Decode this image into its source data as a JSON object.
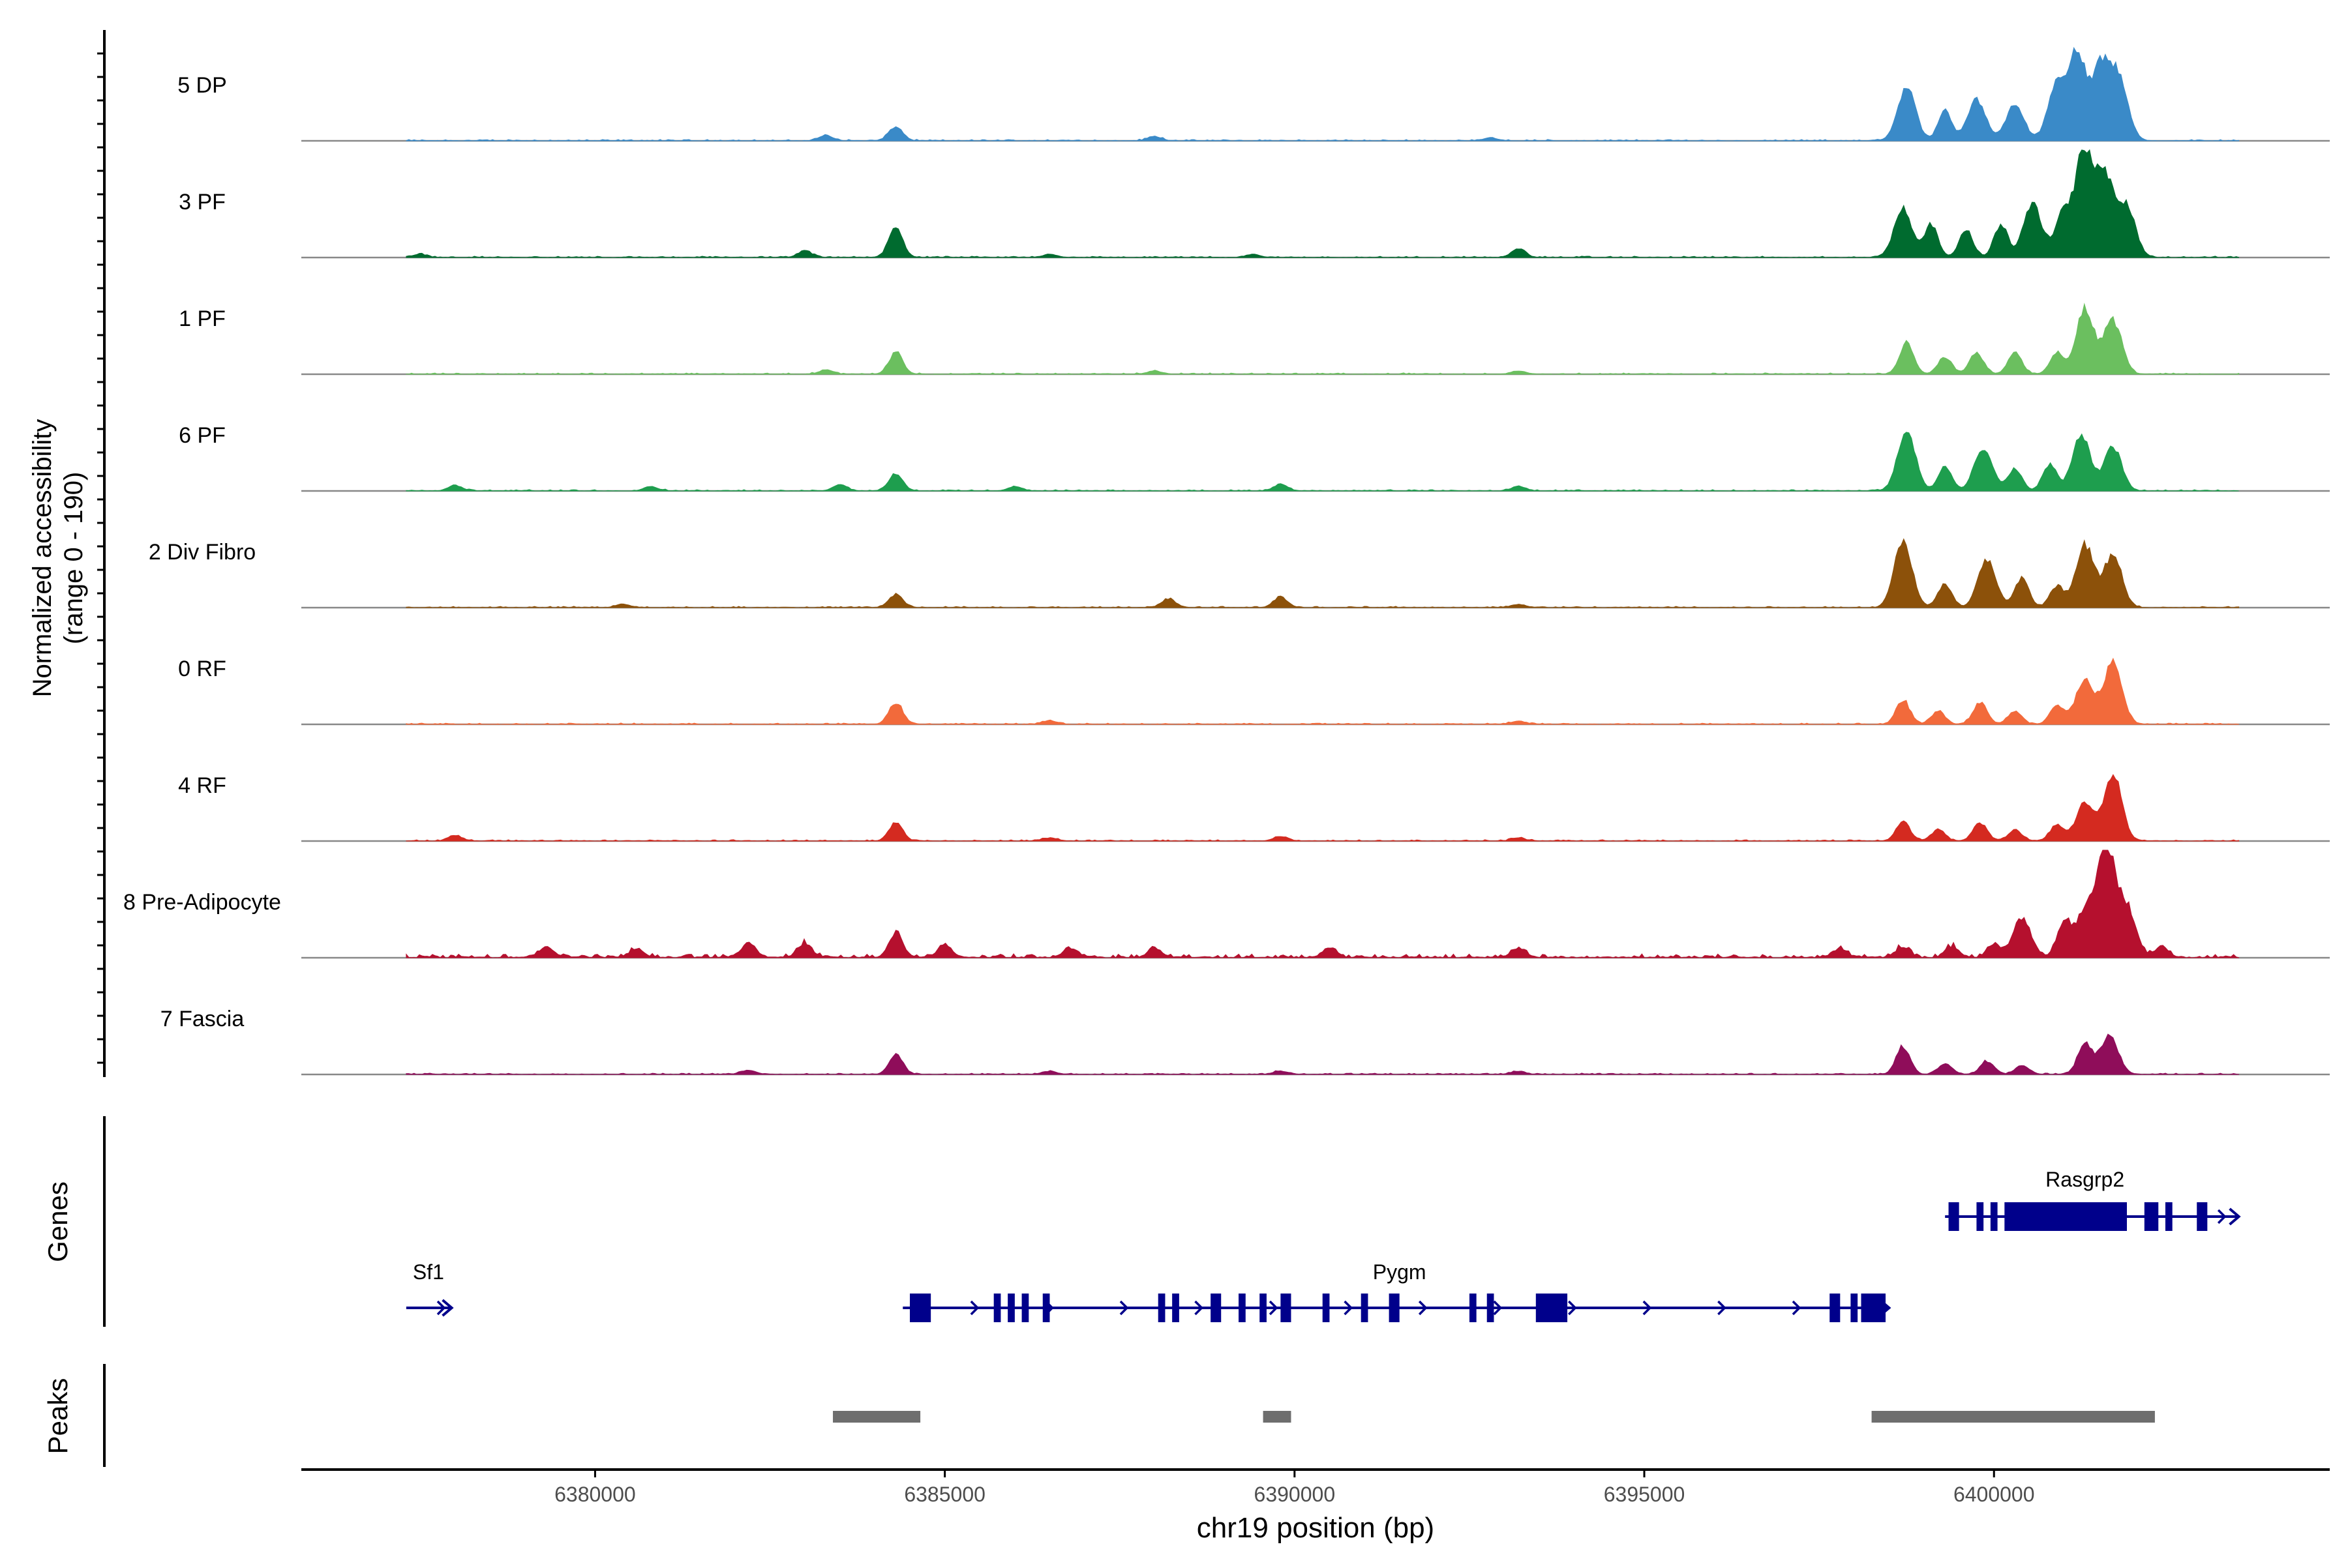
{
  "chart_data": {
    "type": "area",
    "title": "",
    "xlabel": "chr19 position (bp)",
    "ylabel": "Normalized accessibility",
    "ylabel_range": "(range 0 - 190)",
    "yrange": [
      0,
      190
    ],
    "xlim": [
      6375800,
      6404800
    ],
    "x_ticks": [
      6380000,
      6385000,
      6390000,
      6395000,
      6400000
    ],
    "x_tick_labels": [
      "6380000",
      "6385000",
      "6390000",
      "6395000",
      "6400000"
    ],
    "data_range": [
      6377300,
      6403500
    ],
    "tracks": [
      {
        "name": "5 DP",
        "color": "#3a8ac8",
        "peaks": [
          [
            6383300,
            0.05
          ],
          [
            6384300,
            0.13
          ],
          [
            6388000,
            0.04
          ],
          [
            6392800,
            0.03
          ],
          [
            6398750,
            0.5
          ],
          [
            6399300,
            0.28
          ],
          [
            6399750,
            0.38
          ],
          [
            6400300,
            0.33
          ],
          [
            6400900,
            0.54
          ],
          [
            6401200,
            0.79
          ],
          [
            6401550,
            0.7
          ],
          [
            6401800,
            0.5
          ]
        ]
      },
      {
        "name": "3 PF",
        "color": "#006b2f",
        "peaks": [
          [
            6377500,
            0.03
          ],
          [
            6383000,
            0.06
          ],
          [
            6384300,
            0.28
          ],
          [
            6386500,
            0.03
          ],
          [
            6389400,
            0.03
          ],
          [
            6393200,
            0.08
          ],
          [
            6398700,
            0.46
          ],
          [
            6399100,
            0.3
          ],
          [
            6399600,
            0.25
          ],
          [
            6400100,
            0.3
          ],
          [
            6400550,
            0.5
          ],
          [
            6401000,
            0.4
          ],
          [
            6401300,
            0.98
          ],
          [
            6401600,
            0.7
          ],
          [
            6401900,
            0.45
          ]
        ]
      },
      {
        "name": "1 PF",
        "color": "#6bbf5f",
        "peaks": [
          [
            6383300,
            0.04
          ],
          [
            6384300,
            0.2
          ],
          [
            6388000,
            0.03
          ],
          [
            6393200,
            0.03
          ],
          [
            6398750,
            0.3
          ],
          [
            6399300,
            0.16
          ],
          [
            6399750,
            0.2
          ],
          [
            6400300,
            0.2
          ],
          [
            6400900,
            0.2
          ],
          [
            6401300,
            0.6
          ],
          [
            6401700,
            0.5
          ]
        ]
      },
      {
        "name": "6 PF",
        "color": "#1e9e4e",
        "peaks": [
          [
            6378000,
            0.05
          ],
          [
            6380800,
            0.04
          ],
          [
            6383500,
            0.06
          ],
          [
            6384300,
            0.16
          ],
          [
            6386000,
            0.04
          ],
          [
            6389800,
            0.06
          ],
          [
            6393200,
            0.04
          ],
          [
            6398750,
            0.55
          ],
          [
            6399300,
            0.22
          ],
          [
            6399850,
            0.4
          ],
          [
            6400300,
            0.2
          ],
          [
            6400800,
            0.25
          ],
          [
            6401250,
            0.52
          ],
          [
            6401700,
            0.4
          ]
        ]
      },
      {
        "name": "2 Div Fibro",
        "color": "#8c510a",
        "peaks": [
          [
            6380400,
            0.03
          ],
          [
            6384300,
            0.12
          ],
          [
            6388200,
            0.08
          ],
          [
            6389800,
            0.1
          ],
          [
            6393200,
            0.03
          ],
          [
            6398700,
            0.62
          ],
          [
            6399300,
            0.22
          ],
          [
            6399900,
            0.45
          ],
          [
            6400400,
            0.28
          ],
          [
            6400900,
            0.2
          ],
          [
            6401300,
            0.58
          ],
          [
            6401700,
            0.48
          ]
        ]
      },
      {
        "name": "0 RF",
        "color": "#f26a3b",
        "peaks": [
          [
            6384300,
            0.2
          ],
          [
            6386500,
            0.03
          ],
          [
            6393200,
            0.03
          ],
          [
            6398700,
            0.22
          ],
          [
            6399200,
            0.12
          ],
          [
            6399800,
            0.2
          ],
          [
            6400300,
            0.12
          ],
          [
            6400900,
            0.18
          ],
          [
            6401300,
            0.42
          ],
          [
            6401700,
            0.58
          ]
        ]
      },
      {
        "name": "4 RF",
        "color": "#d42a20",
        "peaks": [
          [
            6378000,
            0.05
          ],
          [
            6384300,
            0.17
          ],
          [
            6386500,
            0.03
          ],
          [
            6389800,
            0.04
          ],
          [
            6393200,
            0.03
          ],
          [
            6398700,
            0.18
          ],
          [
            6399200,
            0.1
          ],
          [
            6399800,
            0.17
          ],
          [
            6400300,
            0.1
          ],
          [
            6400900,
            0.15
          ],
          [
            6401300,
            0.35
          ],
          [
            6401700,
            0.62
          ]
        ]
      },
      {
        "name": "8 Pre-Adipocyte",
        "color": "#b5102e",
        "peaks": [
          [
            6379300,
            0.1
          ],
          [
            6380600,
            0.08
          ],
          [
            6382200,
            0.14
          ],
          [
            6383000,
            0.13
          ],
          [
            6384300,
            0.22
          ],
          [
            6385000,
            0.12
          ],
          [
            6386800,
            0.08
          ],
          [
            6388000,
            0.08
          ],
          [
            6390500,
            0.09
          ],
          [
            6393200,
            0.09
          ],
          [
            6397800,
            0.08
          ],
          [
            6398700,
            0.1
          ],
          [
            6399400,
            0.1
          ],
          [
            6400000,
            0.12
          ],
          [
            6400400,
            0.36
          ],
          [
            6401000,
            0.3
          ],
          [
            6401300,
            0.42
          ],
          [
            6401600,
            1.0
          ],
          [
            6401900,
            0.45
          ],
          [
            6402400,
            0.1
          ]
        ]
      },
      {
        "name": "7 Fascia",
        "color": "#8f0d5a",
        "peaks": [
          [
            6382200,
            0.04
          ],
          [
            6384300,
            0.18
          ],
          [
            6386500,
            0.03
          ],
          [
            6389800,
            0.03
          ],
          [
            6393200,
            0.03
          ],
          [
            6398700,
            0.26
          ],
          [
            6399300,
            0.1
          ],
          [
            6399900,
            0.12
          ],
          [
            6400400,
            0.08
          ],
          [
            6401300,
            0.3
          ],
          [
            6401650,
            0.36
          ]
        ]
      }
    ],
    "genes_label": "Genes",
    "genes": [
      {
        "name": "Sf1",
        "strand": "+",
        "start": 6377300,
        "end": 6377950,
        "exons": []
      },
      {
        "name": "Pygm",
        "strand": "+",
        "start": 6384400,
        "end": 6398500,
        "exons": [
          [
            6384500,
            6384800
          ],
          [
            6385700,
            6385800
          ],
          [
            6385900,
            6386000
          ],
          [
            6386100,
            6386200
          ],
          [
            6386400,
            6386500
          ],
          [
            6388050,
            6388150
          ],
          [
            6388250,
            6388350
          ],
          [
            6388800,
            6388950
          ],
          [
            6389200,
            6389300
          ],
          [
            6389500,
            6389600
          ],
          [
            6389800,
            6389950
          ],
          [
            6390400,
            6390500
          ],
          [
            6390950,
            6391050
          ],
          [
            6391350,
            6391500
          ],
          [
            6392500,
            6392600
          ],
          [
            6392750,
            6392850
          ],
          [
            6393450,
            6393900
          ],
          [
            6397650,
            6397800
          ],
          [
            6397950,
            6398050
          ],
          [
            6398100,
            6398450
          ]
        ]
      },
      {
        "name": "Rasgrp2",
        "strand": "+",
        "start": 6399300,
        "end": 6403500,
        "exons": [
          [
            6399350,
            6399500
          ],
          [
            6399750,
            6399850
          ],
          [
            6399950,
            6400050
          ],
          [
            6400150,
            6401900
          ],
          [
            6402150,
            6402350
          ],
          [
            6402450,
            6402550
          ],
          [
            6402900,
            6403050
          ]
        ]
      }
    ],
    "peaks_label": "Peaks",
    "peak_regions": [
      [
        6383400,
        6384650
      ],
      [
        6389550,
        6389950
      ],
      [
        6398250,
        6402300
      ]
    ]
  }
}
